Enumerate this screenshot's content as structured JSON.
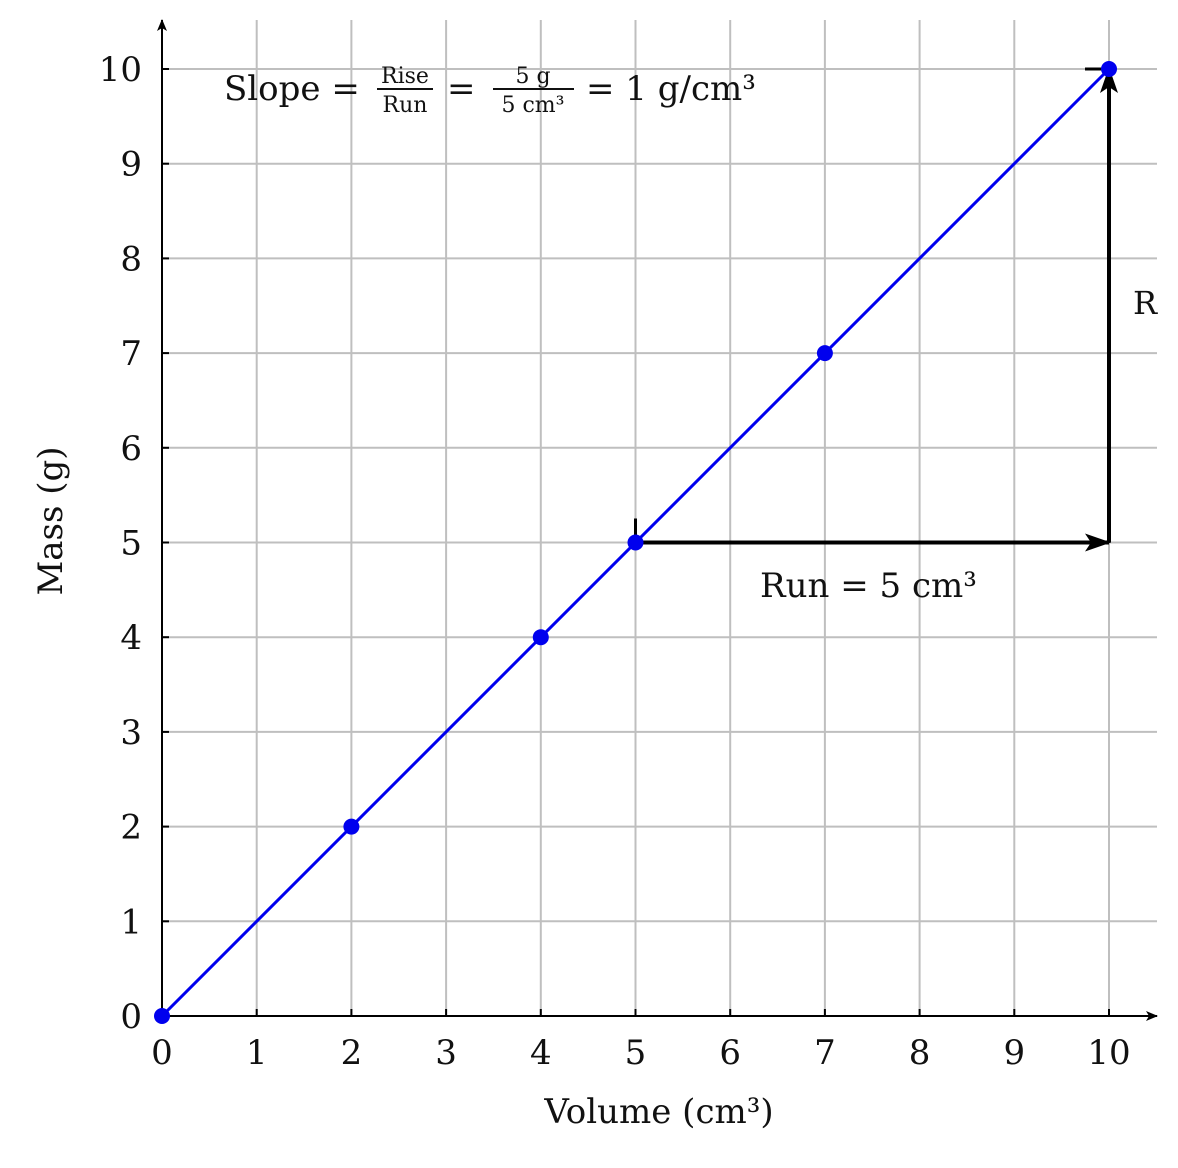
{
  "chart_data": {
    "type": "scatter",
    "xlabel": "Volume (cm³)",
    "ylabel": "Mass (g)",
    "xlim": [
      0,
      10
    ],
    "ylim": [
      0,
      10
    ],
    "grid": true,
    "x_ticks": [
      0,
      1,
      2,
      3,
      4,
      5,
      6,
      7,
      8,
      9,
      10
    ],
    "y_ticks": [
      0,
      1,
      2,
      3,
      4,
      5,
      6,
      7,
      8,
      9,
      10
    ],
    "line": {
      "x": [
        0,
        10
      ],
      "y": [
        0,
        10
      ]
    },
    "series": [
      {
        "x": [
          0,
          2,
          4,
          5,
          7,
          10
        ],
        "y": [
          0,
          2,
          4,
          5,
          7,
          10
        ]
      }
    ],
    "annotations": {
      "slope_prefix": "Slope =",
      "frac1_num": "Rise",
      "frac1_den": "Run",
      "equals": "=",
      "frac2_num": "5 g",
      "frac2_den": "5 cm³",
      "slope_result": "= 1 g/cm³",
      "run_label": "Run = 5 cm³",
      "rise_label": "R"
    },
    "run_arrow": {
      "from": [
        5,
        5
      ],
      "to": [
        10,
        5
      ]
    },
    "rise_arrow": {
      "from": [
        10,
        5
      ],
      "to": [
        10,
        10
      ]
    },
    "colors": {
      "series": "#0000ee",
      "grid": "#bfbfbf",
      "axis": "#000000"
    }
  }
}
